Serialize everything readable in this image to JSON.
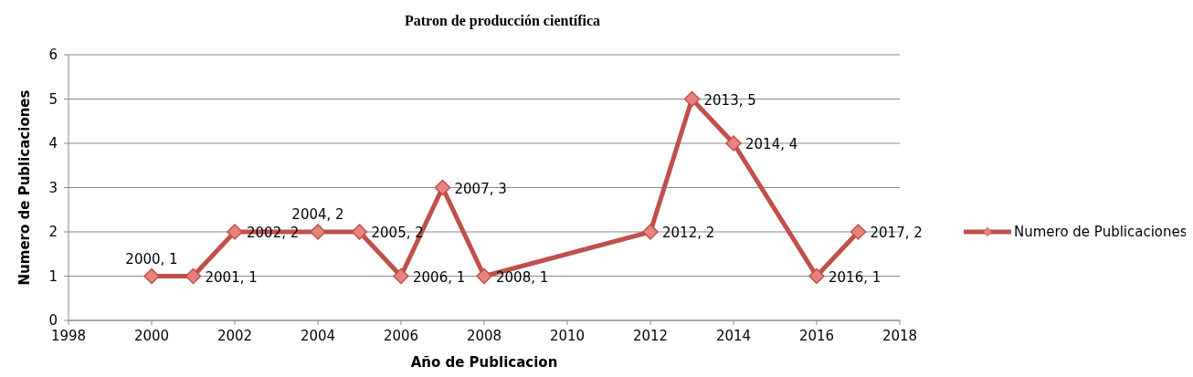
{
  "chart_data": {
    "type": "line",
    "title": "Patron de producción científica",
    "xlabel": "Año de Publicacion",
    "ylabel": "Numero de Publicaciones",
    "x": [
      2000,
      2001,
      2002,
      2004,
      2005,
      2006,
      2007,
      2008,
      2012,
      2013,
      2014,
      2016,
      2017
    ],
    "series": [
      {
        "name": "Numero de Publicaciones",
        "color": "#c0504d",
        "values": [
          1,
          1,
          2,
          2,
          2,
          1,
          3,
          1,
          2,
          5,
          4,
          1,
          2
        ],
        "value_labels": [
          "2000, 1",
          "2001, 1",
          "2002, 2",
          "2004, 2",
          "2005, 2",
          "2006, 1",
          "2007, 3",
          "2008, 1",
          "2012, 2",
          "2013, 5",
          "2014, 4",
          "2016, 1",
          "2017, 2"
        ]
      }
    ],
    "xlim": [
      1998,
      2018
    ],
    "xticks": [
      1998,
      2000,
      2002,
      2004,
      2006,
      2008,
      2010,
      2012,
      2014,
      2016,
      2018
    ],
    "ylim": [
      0,
      6
    ],
    "yticks": [
      0,
      1,
      2,
      3,
      4,
      5,
      6
    ],
    "grid": "y",
    "legend": "right",
    "marker": "diamond",
    "line_style": "solid"
  }
}
